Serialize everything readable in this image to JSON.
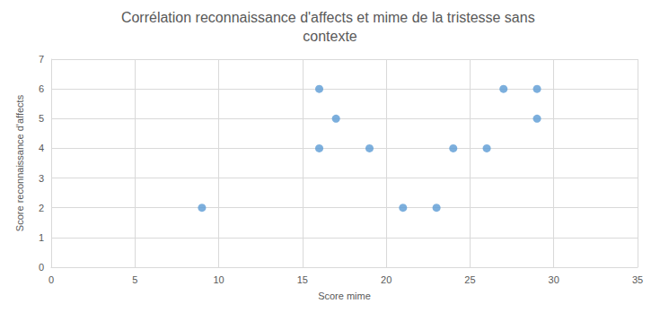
{
  "chart_data": {
    "type": "scatter",
    "title": "Corrélation reconnaissance d'affects et mime de la tristesse sans contexte",
    "x_label": "Score mime",
    "y_label": "Score reconnaissance d'affects",
    "x": [
      9,
      16,
      17,
      16,
      19,
      21,
      23,
      24,
      26,
      27,
      29,
      29
    ],
    "values": [
      2,
      6,
      5,
      4,
      4,
      2,
      2,
      4,
      4,
      6,
      6,
      5
    ],
    "color": "#5b9bd5",
    "marker": "circle",
    "xlim": [
      0,
      35
    ],
    "xticks": [
      0,
      5,
      10,
      15,
      20,
      25,
      30,
      35
    ],
    "ylim": [
      0,
      7
    ],
    "yticks": [
      0,
      1,
      2,
      3,
      4,
      5,
      6,
      7
    ],
    "grid": true
  }
}
